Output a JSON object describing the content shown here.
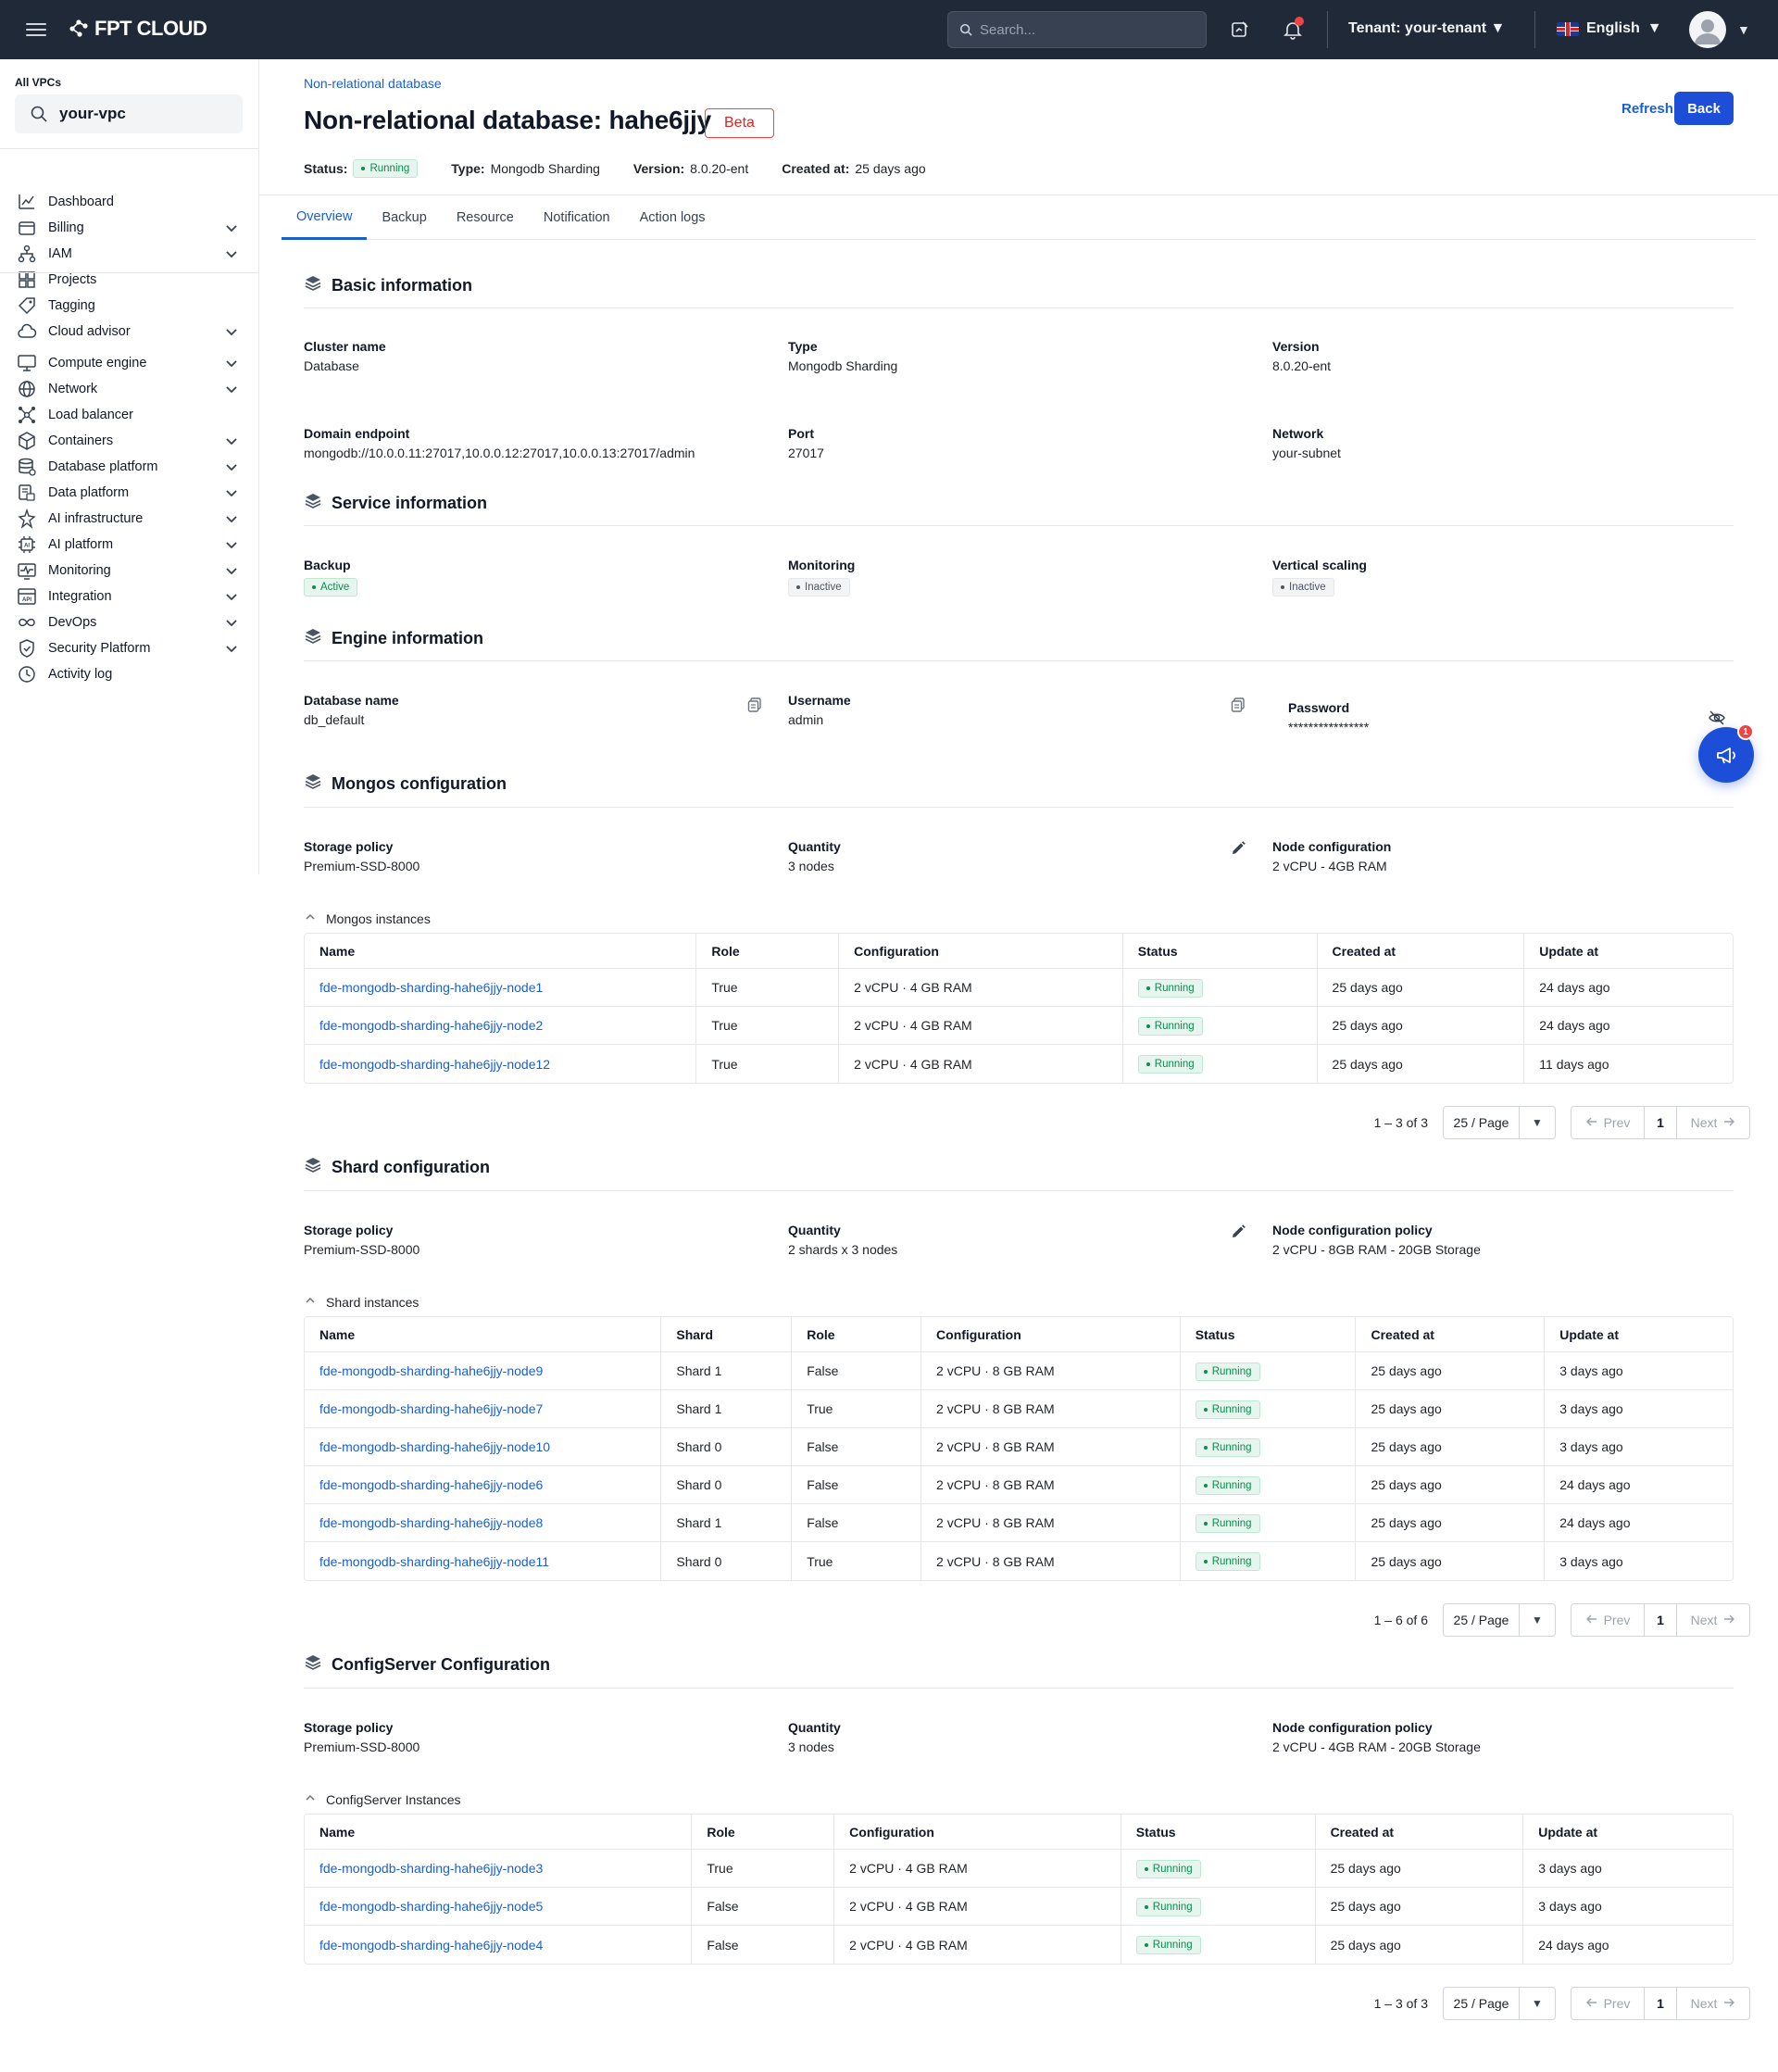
{
  "topbar": {
    "brand": "FPT CLOUD",
    "search_placeholder": "Search...",
    "tenant_label": "Tenant:",
    "tenant_value": "your-tenant",
    "language": "English"
  },
  "sidebar": {
    "vpc_label": "All VPCs",
    "vpc_value": "your-vpc",
    "items": [
      {
        "label": "Dashboard",
        "icon": "chart-icon",
        "expandable": false
      },
      {
        "label": "Billing",
        "icon": "wallet-icon",
        "expandable": true
      },
      {
        "label": "IAM",
        "icon": "org-chart-icon",
        "expandable": true
      },
      {
        "label": "Projects",
        "icon": "grid-icon",
        "expandable": false
      },
      {
        "label": "Tagging",
        "icon": "tag-icon",
        "expandable": false
      },
      {
        "label": "Cloud advisor",
        "icon": "cloud-icon",
        "expandable": true
      },
      {
        "label": "Compute engine",
        "icon": "monitor-icon",
        "expandable": true
      },
      {
        "label": "Network",
        "icon": "globe-icon",
        "expandable": true
      },
      {
        "label": "Load balancer",
        "icon": "nodes-icon",
        "expandable": false
      },
      {
        "label": "Containers",
        "icon": "cube-icon",
        "expandable": true
      },
      {
        "label": "Database platform",
        "icon": "database-icon",
        "expandable": true
      },
      {
        "label": "Data platform",
        "icon": "data-icon",
        "expandable": true
      },
      {
        "label": "AI infrastructure",
        "icon": "ai-infra-icon",
        "expandable": true
      },
      {
        "label": "AI platform",
        "icon": "ai-chip-icon",
        "expandable": true
      },
      {
        "label": "Monitoring",
        "icon": "pulse-icon",
        "expandable": true
      },
      {
        "label": "Integration",
        "icon": "api-icon",
        "expandable": true
      },
      {
        "label": "DevOps",
        "icon": "infinity-icon",
        "expandable": true
      },
      {
        "label": "Security Platform",
        "icon": "shield-icon",
        "expandable": true
      },
      {
        "label": "Activity log",
        "icon": "clock-icon",
        "expandable": false
      }
    ]
  },
  "header": {
    "breadcrumb": "Non-relational database",
    "title": "Non-relational database: hahe6jjy",
    "beta": "Beta",
    "refresh": "Refresh",
    "back": "Back",
    "status_label": "Status:",
    "status_value": "Running",
    "type_label": "Type:",
    "type_value": "Mongodb Sharding",
    "version_label": "Version:",
    "version_value": "8.0.20-ent",
    "created_label": "Created at:",
    "created_value": "25 days ago"
  },
  "tabs": [
    "Overview",
    "Backup",
    "Resource",
    "Notification",
    "Action logs"
  ],
  "basic": {
    "title": "Basic information",
    "cluster_name_label": "Cluster name",
    "cluster_name": "Database",
    "type_label": "Type",
    "type": "Mongodb Sharding",
    "version_label": "Version",
    "version": "8.0.20-ent",
    "endpoint_label": "Domain endpoint",
    "endpoint": "mongodb://10.0.0.11:27017,10.0.0.12:27017,10.0.0.13:27017/admin",
    "port_label": "Port",
    "port": "27017",
    "network_label": "Network",
    "network": "your-subnet"
  },
  "service": {
    "title": "Service information",
    "backup_label": "Backup",
    "backup": "Active",
    "monitoring_label": "Monitoring",
    "monitoring": "Inactive",
    "scaling_label": "Vertical scaling",
    "scaling": "Inactive"
  },
  "engine": {
    "title": "Engine information",
    "dbname_label": "Database name",
    "dbname": "db_default",
    "username_label": "Username",
    "username": "admin",
    "password_label": "Password",
    "password": "****************"
  },
  "mongos": {
    "title": "Mongos configuration",
    "storage_label": "Storage policy",
    "storage": "Premium-SSD-8000",
    "quantity_label": "Quantity",
    "quantity": "3 nodes",
    "node_label": "Node configuration",
    "node": "2 vCPU - 4GB RAM",
    "instances_label": "Mongos instances",
    "columns": [
      "Name",
      "Role",
      "Configuration",
      "Status",
      "Created at",
      "Update at"
    ],
    "rows": [
      [
        "fde-mongodb-sharding-hahe6jjy-node1",
        "True",
        "2 vCPU · 4 GB RAM",
        "Running",
        "25 days ago",
        "24 days ago"
      ],
      [
        "fde-mongodb-sharding-hahe6jjy-node2",
        "True",
        "2 vCPU · 4 GB RAM",
        "Running",
        "25 days ago",
        "24 days ago"
      ],
      [
        "fde-mongodb-sharding-hahe6jjy-node12",
        "True",
        "2 vCPU · 4 GB RAM",
        "Running",
        "25 days ago",
        "11 days ago"
      ]
    ],
    "pager": {
      "count": "1 – 3 of 3",
      "size": "25 / Page",
      "prev": "Prev",
      "page": "1",
      "next": "Next"
    }
  },
  "shard": {
    "title": "Shard configuration",
    "storage_label": "Storage policy",
    "storage": "Premium-SSD-8000",
    "quantity_label": "Quantity",
    "quantity": "2 shards x 3 nodes",
    "node_label": "Node configuration policy",
    "node": "2 vCPU - 8GB RAM - 20GB Storage",
    "instances_label": "Shard instances",
    "columns": [
      "Name",
      "Shard",
      "Role",
      "Configuration",
      "Status",
      "Created at",
      "Update at"
    ],
    "rows": [
      [
        "fde-mongodb-sharding-hahe6jjy-node9",
        "Shard 1",
        "False",
        "2 vCPU · 8 GB RAM",
        "Running",
        "25 days ago",
        "3 days ago"
      ],
      [
        "fde-mongodb-sharding-hahe6jjy-node7",
        "Shard 1",
        "True",
        "2 vCPU · 8 GB RAM",
        "Running",
        "25 days ago",
        "3 days ago"
      ],
      [
        "fde-mongodb-sharding-hahe6jjy-node10",
        "Shard 0",
        "False",
        "2 vCPU · 8 GB RAM",
        "Running",
        "25 days ago",
        "3 days ago"
      ],
      [
        "fde-mongodb-sharding-hahe6jjy-node6",
        "Shard 0",
        "False",
        "2 vCPU · 8 GB RAM",
        "Running",
        "25 days ago",
        "24 days ago"
      ],
      [
        "fde-mongodb-sharding-hahe6jjy-node8",
        "Shard 1",
        "False",
        "2 vCPU · 8 GB RAM",
        "Running",
        "25 days ago",
        "24 days ago"
      ],
      [
        "fde-mongodb-sharding-hahe6jjy-node11",
        "Shard 0",
        "True",
        "2 vCPU · 8 GB RAM",
        "Running",
        "25 days ago",
        "3 days ago"
      ]
    ],
    "pager": {
      "count": "1 – 6 of 6",
      "size": "25 / Page",
      "prev": "Prev",
      "page": "1",
      "next": "Next"
    }
  },
  "config": {
    "title": "ConfigServer Configuration",
    "storage_label": "Storage policy",
    "storage": "Premium-SSD-8000",
    "quantity_label": "Quantity",
    "quantity": "3 nodes",
    "node_label": "Node configuration policy",
    "node": "2 vCPU - 4GB RAM - 20GB Storage",
    "instances_label": "ConfigServer Instances",
    "columns": [
      "Name",
      "Role",
      "Configuration",
      "Status",
      "Created at",
      "Update at"
    ],
    "rows": [
      [
        "fde-mongodb-sharding-hahe6jjy-node3",
        "True",
        "2 vCPU · 4 GB RAM",
        "Running",
        "25 days ago",
        "3 days ago"
      ],
      [
        "fde-mongodb-sharding-hahe6jjy-node5",
        "False",
        "2 vCPU · 4 GB RAM",
        "Running",
        "25 days ago",
        "3 days ago"
      ],
      [
        "fde-mongodb-sharding-hahe6jjy-node4",
        "False",
        "2 vCPU · 4 GB RAM",
        "Running",
        "25 days ago",
        "24 days ago"
      ]
    ],
    "pager": {
      "count": "1 – 3 of 3",
      "size": "25 / Page",
      "prev": "Prev",
      "page": "1",
      "next": "Next"
    }
  },
  "fab_badge": "1",
  "colors": {
    "accent": "#1d4ed8",
    "topbar": "#1f2937",
    "running": "#0f8a4f",
    "beta": "#dc2626"
  }
}
